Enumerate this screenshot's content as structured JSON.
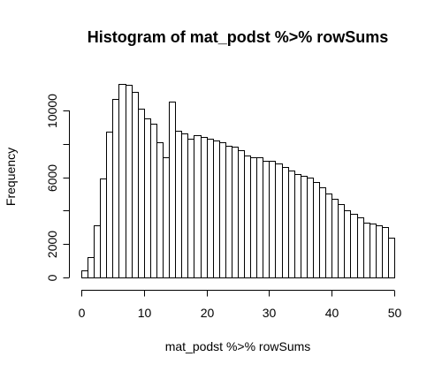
{
  "chart_data": {
    "type": "bar",
    "title": "Histogram of mat_podst %>% rowSums",
    "xlabel": "mat_podst %>% rowSums",
    "ylabel": "Frequency",
    "bin_width": 1,
    "x_start": 0,
    "xlim": [
      0,
      50
    ],
    "ylim": [
      0,
      12000
    ],
    "x_ticks": [
      0,
      10,
      20,
      30,
      40,
      50
    ],
    "y_ticks": [
      0,
      2000,
      4000,
      6000,
      8000,
      10000
    ],
    "y_tick_labels": [
      "0",
      "2000",
      "",
      "6000",
      "",
      "10000"
    ],
    "values": [
      400,
      1200,
      3100,
      5900,
      8700,
      10700,
      11600,
      11500,
      11100,
      10100,
      9500,
      9200,
      8100,
      7200,
      10500,
      8800,
      8600,
      8300,
      8500,
      8400,
      8300,
      8200,
      8100,
      7900,
      7800,
      7600,
      7300,
      7200,
      7200,
      7000,
      7000,
      6800,
      6600,
      6400,
      6200,
      6100,
      6000,
      5700,
      5400,
      5000,
      4700,
      4400,
      4000,
      3800,
      3600,
      3300,
      3200,
      3100,
      3000,
      2400
    ],
    "bar_fill": "#ffffff",
    "bar_stroke": "#000000",
    "grid": false,
    "legend": "none"
  }
}
